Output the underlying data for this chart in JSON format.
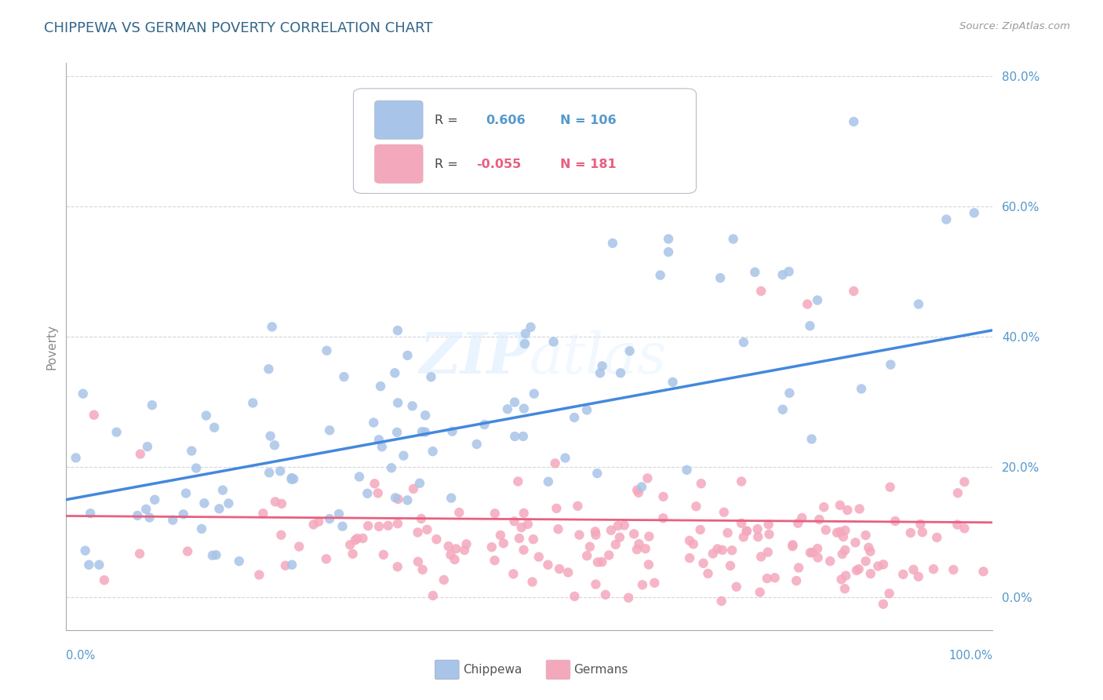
{
  "title": "CHIPPEWA VS GERMAN POVERTY CORRELATION CHART",
  "source": "Source: ZipAtlas.com",
  "ylabel": "Poverty",
  "xlim": [
    0,
    100
  ],
  "ylim": [
    -5,
    82
  ],
  "ytick_positions": [
    0,
    20,
    40,
    60,
    80
  ],
  "ytick_labels": [
    "0.0%",
    "20.0%",
    "40.0%",
    "60.0%",
    "80.0%"
  ],
  "chippewa_color": "#a8c4e8",
  "german_color": "#f4a8bc",
  "line_chippewa": "#4488dd",
  "line_german": "#e86080",
  "background_color": "#ffffff",
  "grid_color": "#cccccc",
  "chippewa_line_y0": 15.0,
  "chippewa_line_y1": 41.0,
  "german_line_y0": 12.5,
  "german_line_y1": 11.5,
  "title_color": "#336688",
  "source_color": "#999999",
  "tick_color": "#5599cc",
  "ylabel_color": "#888888"
}
